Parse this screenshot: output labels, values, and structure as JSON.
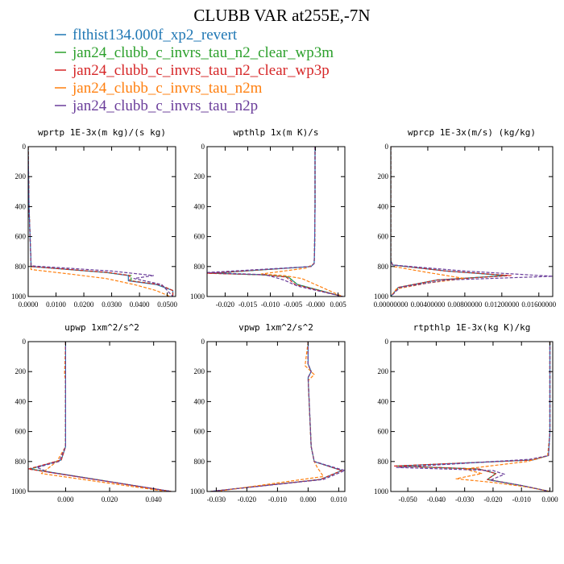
{
  "figure": {
    "title": "CLUBB VAR at255E,-7N",
    "legend": [
      {
        "label": "flthist134.000f_xp2_revert",
        "color": "#1f77b4"
      },
      {
        "label": "jan24_clubb_c_invrs_tau_n2_clear_wp3m",
        "color": "#2ca02c"
      },
      {
        "label": "jan24_clubb_c_invrs_tau_n2_clear_wp3p",
        "color": "#d62728"
      },
      {
        "label": "jan24_clubb_c_invrs_tau_n2m",
        "color": "#ff7f0e"
      },
      {
        "label": "jan24_clubb_c_invrs_tau_n2p",
        "color": "#6a3d9a"
      }
    ]
  },
  "chart_data": [
    {
      "type": "line",
      "title": "wprtp  1E-3x(m kg)/(s kg)",
      "xlim": [
        0.0,
        0.053
      ],
      "ylim": [
        0,
        1000
      ],
      "y_inverted": true,
      "xticks": [
        0.0,
        0.01,
        0.02,
        0.03,
        0.04,
        0.05
      ],
      "xtick_labels": [
        "0.0000",
        "0.0100",
        "0.0200",
        "0.0300",
        "0.0400",
        "0.0500"
      ],
      "yticks": [
        0,
        200,
        400,
        600,
        800,
        1000
      ],
      "ytick_labels": [
        "0",
        "200",
        "400",
        "600",
        "800",
        "1000"
      ],
      "series": [
        {
          "color": "#1f77b4",
          "dash": false,
          "x": [
            0,
            0.0003,
            0.001,
            0.001,
            0.028,
            0.036,
            0.036,
            0.046,
            0.052,
            0.052
          ],
          "y": [
            0,
            400,
            780,
            800,
            840,
            860,
            895,
            920,
            960,
            1000
          ]
        },
        {
          "color": "#2ca02c",
          "dash": true,
          "x": [
            0,
            0.0003,
            0.001,
            0.001,
            0.028,
            0.037,
            0.037,
            0.047,
            0.052,
            0.052
          ],
          "y": [
            0,
            400,
            780,
            800,
            840,
            860,
            895,
            920,
            960,
            1000
          ]
        },
        {
          "color": "#d62728",
          "dash": true,
          "x": [
            0,
            0.0003,
            0.001,
            0.001,
            0.029,
            0.0365,
            0.0365,
            0.047,
            0.052,
            0.052
          ],
          "y": [
            0,
            400,
            780,
            800,
            840,
            860,
            895,
            920,
            960,
            1000
          ]
        },
        {
          "color": "#ff7f0e",
          "dash": true,
          "x": [
            0,
            0.0003,
            0.001,
            0.001,
            0.015,
            0.028,
            0.038,
            0.046,
            0.051
          ],
          "y": [
            0,
            400,
            780,
            820,
            850,
            880,
            920,
            960,
            1000
          ]
        },
        {
          "color": "#6a3d9a",
          "dash": true,
          "x": [
            0,
            0.0003,
            0.001,
            0.001,
            0.03,
            0.045,
            0.038,
            0.048,
            0.052
          ],
          "y": [
            0,
            400,
            780,
            795,
            830,
            860,
            880,
            920,
            1000
          ]
        }
      ]
    },
    {
      "type": "line",
      "title": "wpthlp  1x(m K)/s",
      "xlim": [
        -0.024,
        0.0065
      ],
      "ylim": [
        0,
        1000
      ],
      "y_inverted": true,
      "xticks": [
        -0.02,
        -0.015,
        -0.01,
        -0.005,
        0.0,
        0.005
      ],
      "xtick_labels": [
        "-0.020",
        "-0.015",
        "-0.010",
        "-0.005",
        "-0.000",
        "0.005"
      ],
      "yticks": [
        0,
        200,
        400,
        600,
        800,
        1000
      ],
      "ytick_labels": [
        "0",
        "200",
        "400",
        "600",
        "800",
        "1000"
      ],
      "series": [
        {
          "color": "#1f77b4",
          "dash": false,
          "x": [
            -0.0001,
            -0.0001,
            -0.0002,
            -0.0003,
            -0.001,
            -0.023,
            -0.012,
            -0.006,
            -0.004,
            0.006
          ],
          "y": [
            0,
            400,
            700,
            780,
            800,
            845,
            855,
            870,
            920,
            1000
          ]
        },
        {
          "color": "#2ca02c",
          "dash": true,
          "x": [
            -0.0001,
            -0.0001,
            -0.0002,
            -0.0003,
            -0.001,
            -0.023,
            -0.012,
            -0.006,
            -0.004,
            0.006
          ],
          "y": [
            0,
            400,
            700,
            780,
            800,
            845,
            855,
            870,
            920,
            1000
          ]
        },
        {
          "color": "#d62728",
          "dash": true,
          "x": [
            -0.0001,
            -0.0001,
            -0.0002,
            -0.0003,
            -0.001,
            -0.024,
            -0.012,
            -0.0065,
            -0.0045,
            0.006
          ],
          "y": [
            0,
            400,
            700,
            780,
            800,
            845,
            855,
            870,
            920,
            1000
          ]
        },
        {
          "color": "#ff7f0e",
          "dash": true,
          "x": [
            -0.0001,
            -0.0001,
            -0.0002,
            -0.0003,
            -0.002,
            -0.012,
            -0.007,
            -0.003,
            0.006
          ],
          "y": [
            0,
            400,
            700,
            780,
            810,
            850,
            860,
            880,
            1000
          ]
        },
        {
          "color": "#6a3d9a",
          "dash": true,
          "x": [
            -0.0001,
            -0.0001,
            -0.0002,
            -0.0003,
            -0.001,
            -0.024,
            -0.011,
            -0.007,
            -0.004,
            0.006
          ],
          "y": [
            0,
            400,
            700,
            780,
            800,
            840,
            855,
            890,
            930,
            1000
          ]
        }
      ]
    },
    {
      "type": "line",
      "title": "wprcp  1E-3x(m/s) (kg/kg)",
      "xlim": [
        0.0,
        0.0175
      ],
      "ylim": [
        0,
        1000
      ],
      "y_inverted": true,
      "xticks": [
        0.0,
        0.004,
        0.008,
        0.012,
        0.016
      ],
      "xtick_labels": [
        "0.00000000",
        "0.00400000",
        "0.00800000",
        "0.01200000",
        "0.01600000"
      ],
      "yticks": [
        0,
        200,
        400,
        600,
        800,
        1000
      ],
      "ytick_labels": [
        "0",
        "200",
        "400",
        "600",
        "800",
        "1000"
      ],
      "series": [
        {
          "color": "#1f77b4",
          "dash": false,
          "x": [
            0,
            0,
            0.0002,
            0.006,
            0.0125,
            0.005,
            0.0008,
            0
          ],
          "y": [
            0,
            760,
            790,
            830,
            860,
            890,
            940,
            1000
          ]
        },
        {
          "color": "#2ca02c",
          "dash": true,
          "x": [
            0,
            0,
            0.0002,
            0.006,
            0.0125,
            0.005,
            0.0008,
            0
          ],
          "y": [
            0,
            760,
            790,
            830,
            860,
            890,
            940,
            1000
          ]
        },
        {
          "color": "#d62728",
          "dash": true,
          "x": [
            0,
            0,
            0.0002,
            0.006,
            0.013,
            0.005,
            0.0008,
            0
          ],
          "y": [
            0,
            760,
            790,
            830,
            860,
            890,
            940,
            1000
          ]
        },
        {
          "color": "#ff7f0e",
          "dash": true,
          "x": [
            0,
            0,
            0.0003,
            0.004,
            0.008,
            0.004,
            0.0006,
            0
          ],
          "y": [
            0,
            760,
            800,
            840,
            880,
            910,
            950,
            1000
          ]
        },
        {
          "color": "#6a3d9a",
          "dash": true,
          "x": [
            0,
            0,
            0.0002,
            0.008,
            0.0175,
            0.006,
            0.001,
            0
          ],
          "y": [
            0,
            760,
            790,
            830,
            865,
            890,
            940,
            1000
          ]
        }
      ]
    },
    {
      "type": "line",
      "title": "upwp  1xm^2/s^2",
      "xlim": [
        -0.017,
        0.05
      ],
      "ylim": [
        0,
        1000
      ],
      "y_inverted": true,
      "xticks": [
        0.0,
        0.02,
        0.04
      ],
      "xtick_labels": [
        "0.000",
        "0.020",
        "0.040"
      ],
      "yticks": [
        0,
        200,
        400,
        600,
        800,
        1000
      ],
      "ytick_labels": [
        "0",
        "200",
        "400",
        "600",
        "800",
        "1000"
      ],
      "series": [
        {
          "color": "#1f77b4",
          "dash": false,
          "x": [
            0.0,
            0.0,
            0.0,
            0.0,
            -0.002,
            -0.016,
            0.048
          ],
          "y": [
            0,
            200,
            260,
            700,
            790,
            850,
            1000
          ]
        },
        {
          "color": "#2ca02c",
          "dash": true,
          "x": [
            0.0,
            0.0,
            0.0,
            0.0,
            -0.002,
            -0.016,
            0.048
          ],
          "y": [
            0,
            200,
            260,
            700,
            790,
            850,
            1000
          ]
        },
        {
          "color": "#d62728",
          "dash": true,
          "x": [
            0.0,
            0.0,
            0.0,
            0.0,
            -0.002,
            -0.017,
            0.048
          ],
          "y": [
            0,
            200,
            260,
            700,
            790,
            850,
            1000
          ]
        },
        {
          "color": "#ff7f0e",
          "dash": true,
          "x": [
            0.0,
            -0.0005,
            0.0,
            0.0,
            -0.004,
            -0.011,
            0.046
          ],
          "y": [
            0,
            220,
            260,
            700,
            800,
            880,
            1000
          ]
        },
        {
          "color": "#6a3d9a",
          "dash": true,
          "x": [
            0.0,
            0.0,
            0.0,
            0.0,
            -0.003,
            -0.013,
            -0.008,
            0.048
          ],
          "y": [
            0,
            200,
            260,
            700,
            800,
            840,
            870,
            1000
          ]
        }
      ]
    },
    {
      "type": "line",
      "title": "vpwp  1xm^2/s^2",
      "xlim": [
        -0.033,
        0.012
      ],
      "ylim": [
        0,
        1000
      ],
      "y_inverted": true,
      "xticks": [
        -0.03,
        -0.02,
        -0.01,
        0.0,
        0.01
      ],
      "xtick_labels": [
        "-0.030",
        "-0.020",
        "-0.010",
        "0.000",
        "0.010"
      ],
      "yticks": [
        0,
        200,
        400,
        600,
        800,
        1000
      ],
      "ytick_labels": [
        "0",
        "200",
        "400",
        "600",
        "800",
        "1000"
      ],
      "series": [
        {
          "color": "#1f77b4",
          "dash": false,
          "x": [
            0.0,
            0.0,
            0.001,
            0.0,
            0.001,
            0.002,
            0.011,
            0.004,
            -0.032
          ],
          "y": [
            0,
            150,
            200,
            240,
            700,
            800,
            860,
            920,
            1000
          ]
        },
        {
          "color": "#2ca02c",
          "dash": true,
          "x": [
            0.0,
            0.0,
            0.001,
            0.0,
            0.001,
            0.002,
            0.011,
            0.004,
            -0.032
          ],
          "y": [
            0,
            150,
            200,
            240,
            700,
            800,
            860,
            920,
            1000
          ]
        },
        {
          "color": "#d62728",
          "dash": true,
          "x": [
            0.0,
            0.0,
            0.001,
            0.0,
            0.001,
            0.002,
            0.011,
            0.004,
            -0.032
          ],
          "y": [
            0,
            150,
            200,
            240,
            700,
            800,
            860,
            920,
            1000
          ]
        },
        {
          "color": "#ff7f0e",
          "dash": true,
          "x": [
            0.0,
            -0.001,
            0.002,
            0.0,
            0.001,
            0.002,
            0.003,
            0.005,
            -0.03
          ],
          "y": [
            0,
            160,
            220,
            260,
            700,
            800,
            840,
            900,
            1000
          ]
        },
        {
          "color": "#6a3d9a",
          "dash": true,
          "x": [
            0.0,
            0.0,
            0.001,
            0.0,
            0.001,
            0.002,
            0.012,
            0.005,
            -0.032
          ],
          "y": [
            0,
            150,
            200,
            240,
            700,
            800,
            860,
            920,
            1000
          ]
        }
      ]
    },
    {
      "type": "line",
      "title": "rtpthlp  1E-3x(kg K)/kg",
      "xlim": [
        -0.056,
        0.001
      ],
      "ylim": [
        0,
        1000
      ],
      "y_inverted": true,
      "xticks": [
        -0.05,
        -0.04,
        -0.03,
        -0.02,
        -0.01,
        0.0
      ],
      "xtick_labels": [
        "-0.050",
        "-0.040",
        "-0.030",
        "-0.020",
        "-0.010",
        "0.000"
      ],
      "yticks": [
        0,
        200,
        400,
        600,
        800,
        1000
      ],
      "ytick_labels": [
        "0",
        "200",
        "400",
        "600",
        "800",
        "1000"
      ],
      "series": [
        {
          "color": "#1f77b4",
          "dash": false,
          "x": [
            0.0,
            0.0,
            -0.0005,
            -0.006,
            -0.054,
            -0.025,
            -0.019,
            -0.022,
            -0.01,
            0.0
          ],
          "y": [
            0,
            600,
            760,
            790,
            830,
            850,
            880,
            920,
            960,
            1000
          ]
        },
        {
          "color": "#2ca02c",
          "dash": true,
          "x": [
            0.0,
            0.0,
            -0.0005,
            -0.006,
            -0.054,
            -0.025,
            -0.019,
            -0.022,
            -0.01,
            0.0
          ],
          "y": [
            0,
            600,
            760,
            790,
            830,
            850,
            880,
            920,
            960,
            1000
          ]
        },
        {
          "color": "#d62728",
          "dash": true,
          "x": [
            0.0,
            0.0,
            -0.0005,
            -0.006,
            -0.055,
            -0.025,
            -0.019,
            -0.022,
            -0.01,
            0.0
          ],
          "y": [
            0,
            600,
            760,
            790,
            830,
            850,
            880,
            920,
            960,
            1000
          ]
        },
        {
          "color": "#ff7f0e",
          "dash": true,
          "x": [
            0.0,
            0.0,
            -0.0008,
            -0.008,
            -0.03,
            -0.024,
            -0.033,
            -0.02,
            -0.008,
            0.0
          ],
          "y": [
            0,
            600,
            760,
            800,
            850,
            880,
            915,
            940,
            970,
            1000
          ]
        },
        {
          "color": "#6a3d9a",
          "dash": true,
          "x": [
            0.0,
            0.0,
            -0.0005,
            -0.007,
            -0.054,
            -0.02,
            -0.016,
            -0.021,
            -0.01,
            0.0
          ],
          "y": [
            0,
            600,
            760,
            785,
            840,
            860,
            885,
            925,
            960,
            1000
          ]
        }
      ]
    }
  ]
}
